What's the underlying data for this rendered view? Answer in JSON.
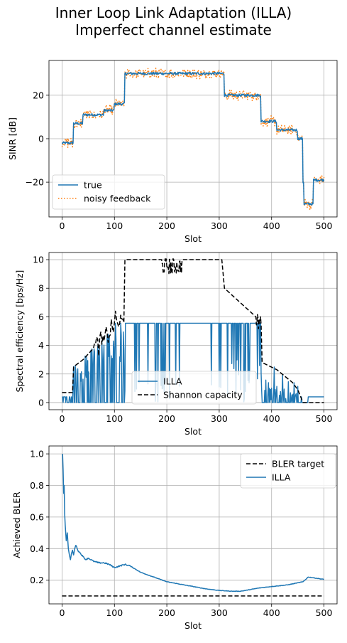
{
  "figure": {
    "title_line1": "Inner Loop Link Adaptation (ILLA)",
    "title_line2": "Imperfect channel estimate"
  },
  "colors": {
    "blue": "#1f77b4",
    "orange": "#ff7f0e",
    "black": "#000000",
    "grid": "#b0b0b0"
  },
  "chart_data": [
    {
      "type": "line",
      "xlabel": "Slot",
      "ylabel": "SINR [dB]",
      "xlim": [
        -25,
        525
      ],
      "ylim": [
        -36,
        36
      ],
      "xticks": [
        0,
        100,
        200,
        300,
        400,
        500
      ],
      "yticks": [
        -20,
        0,
        20
      ],
      "grid": true,
      "legend_position": "lower-left",
      "series": [
        {
          "name": "true",
          "style": "solid",
          "color": "#1f77b4",
          "segments": [
            [
              0,
              22,
              -2
            ],
            [
              22,
              40,
              7
            ],
            [
              40,
              80,
              11
            ],
            [
              80,
              100,
              13
            ],
            [
              100,
              120,
              16
            ],
            [
              120,
              310,
              30
            ],
            [
              310,
              380,
              20
            ],
            [
              380,
              410,
              8
            ],
            [
              410,
              450,
              4
            ],
            [
              450,
              460,
              0
            ],
            [
              460,
              462,
              -20
            ],
            [
              462,
              480,
              -30
            ],
            [
              480,
              500,
              -19
            ]
          ]
        },
        {
          "name": "noisy feedback",
          "style": "dotted",
          "color": "#ff7f0e",
          "noise_db": 1.5
        }
      ]
    },
    {
      "type": "line",
      "xlabel": "Slot",
      "ylabel": "Spectral efficiency [bps/Hz]",
      "xlim": [
        -25,
        525
      ],
      "ylim": [
        -0.5,
        10.5
      ],
      "xticks": [
        0,
        100,
        200,
        300,
        400,
        500
      ],
      "yticks": [
        0,
        2,
        4,
        6,
        8,
        10
      ],
      "grid": true,
      "legend_position": "lower-center",
      "series": [
        {
          "name": "ILLA",
          "style": "solid",
          "color": "#1f77b4",
          "plateau": 5.55,
          "final": 0.4
        },
        {
          "name": "Shannon capacity",
          "style": "dashed",
          "color": "#000000",
          "points": [
            [
              0,
              0.7
            ],
            [
              20,
              0.7
            ],
            [
              22,
              2.5
            ],
            [
              40,
              3.0
            ],
            [
              60,
              3.8
            ],
            [
              80,
              4.3
            ],
            [
              100,
              5.6
            ],
            [
              118,
              5.6
            ],
            [
              120,
              10.0
            ],
            [
              190,
              10.0
            ],
            [
              200,
              9.5
            ],
            [
              210,
              9.0
            ],
            [
              220,
              9.4
            ],
            [
              230,
              10.0
            ],
            [
              305,
              10.0
            ],
            [
              310,
              8.0
            ],
            [
              340,
              7.0
            ],
            [
              370,
              6.0
            ],
            [
              380,
              5.4
            ],
            [
              382,
              2.8
            ],
            [
              410,
              2.3
            ],
            [
              440,
              1.4
            ],
            [
              450,
              0.9
            ],
            [
              460,
              0.0
            ],
            [
              500,
              0.0
            ]
          ]
        }
      ]
    },
    {
      "type": "line",
      "xlabel": "Slot",
      "ylabel": "Achieved BLER",
      "xlim": [
        -25,
        525
      ],
      "ylim": [
        0.05,
        1.05
      ],
      "xticks": [
        0,
        100,
        200,
        300,
        400,
        500
      ],
      "yticks": [
        0.2,
        0.4,
        0.6,
        0.8,
        1.0
      ],
      "grid": true,
      "legend_position": "upper-right",
      "series": [
        {
          "name": "BLER target",
          "style": "dashed",
          "color": "#000000",
          "points": [
            [
              0,
              0.1
            ],
            [
              500,
              0.1
            ]
          ]
        },
        {
          "name": "ILLA",
          "style": "solid",
          "color": "#1f77b4",
          "points": [
            [
              1,
              1.0
            ],
            [
              2,
              0.9
            ],
            [
              3,
              0.75
            ],
            [
              4,
              0.8
            ],
            [
              5,
              0.62
            ],
            [
              6,
              0.55
            ],
            [
              8,
              0.45
            ],
            [
              10,
              0.5
            ],
            [
              12,
              0.4
            ],
            [
              14,
              0.36
            ],
            [
              16,
              0.33
            ],
            [
              18,
              0.37
            ],
            [
              20,
              0.39
            ],
            [
              22,
              0.36
            ],
            [
              24,
              0.4
            ],
            [
              26,
              0.42
            ],
            [
              28,
              0.41
            ],
            [
              30,
              0.39
            ],
            [
              35,
              0.37
            ],
            [
              40,
              0.35
            ],
            [
              45,
              0.33
            ],
            [
              50,
              0.34
            ],
            [
              60,
              0.32
            ],
            [
              70,
              0.31
            ],
            [
              80,
              0.31
            ],
            [
              90,
              0.3
            ],
            [
              100,
              0.28
            ],
            [
              110,
              0.29
            ],
            [
              120,
              0.3
            ],
            [
              130,
              0.29
            ],
            [
              150,
              0.25
            ],
            [
              175,
              0.22
            ],
            [
              200,
              0.19
            ],
            [
              225,
              0.175
            ],
            [
              250,
              0.16
            ],
            [
              275,
              0.145
            ],
            [
              300,
              0.135
            ],
            [
              325,
              0.13
            ],
            [
              340,
              0.13
            ],
            [
              350,
              0.135
            ],
            [
              375,
              0.15
            ],
            [
              400,
              0.16
            ],
            [
              430,
              0.17
            ],
            [
              460,
              0.19
            ],
            [
              470,
              0.22
            ],
            [
              480,
              0.215
            ],
            [
              490,
              0.21
            ],
            [
              500,
              0.205
            ]
          ]
        }
      ]
    }
  ]
}
